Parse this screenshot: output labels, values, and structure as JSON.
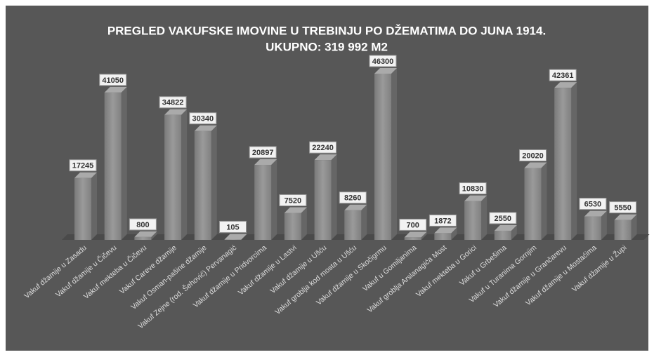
{
  "chart_data": {
    "type": "bar",
    "title": "PREGLED VAKUFSKE IMOVINE U TREBINJU PO DŽEMATIMA DO JUNA 1914.",
    "subtitle": "UKUPNO: 319 992 M2",
    "categories": [
      "Vakuf džamije u Zasadu",
      "Vakuf džamije u Čičevu",
      "Vakuf mekteba u Čičevu",
      "Vakuf Careve džamije",
      "Vakuf Osman-pašine džamije",
      "Vakuf Zejne (rod. Šehović) Pervanagić",
      "Vakuf džamije u Pridvorcima",
      "Vakuf džamije u Lastvi",
      "Vakuf džamije u Ušću",
      "Vakuf groblja kod mosta u Ušću",
      "Vakuf džamije u Skočigrmu",
      "Vakuf u Gomiljanima",
      "Vakuf groblja Arslanagića Most",
      "Vakuf mekteba u Gorici",
      "Vakuf u Grbešima",
      "Vakuf u Turanima Gornjim",
      "Vakuf džamije u Grančarevu",
      "Vakuf džamije u Mostaćima",
      "Vakuf džamije u Župi"
    ],
    "values": [
      17245,
      41050,
      800,
      34822,
      30340,
      105,
      20897,
      7520,
      22240,
      8260,
      46300,
      700,
      1872,
      10830,
      2550,
      20020,
      42361,
      6530,
      5550
    ],
    "color": "#8c8c8c"
  }
}
